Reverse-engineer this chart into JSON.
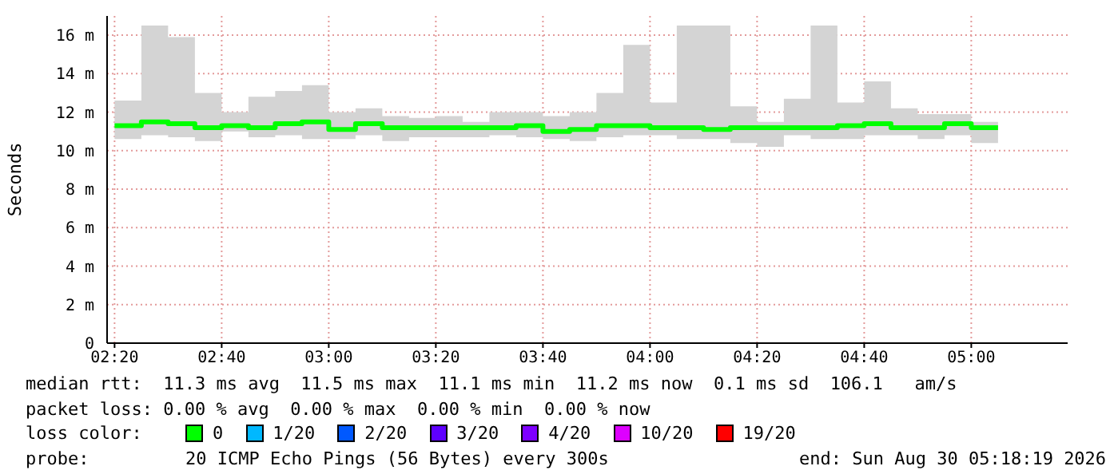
{
  "chart_data": {
    "type": "step",
    "ylabel": "Seconds",
    "x": [
      2.3333,
      2.4167,
      2.5,
      2.5833,
      2.6667,
      2.75,
      2.8333,
      2.9167,
      3.0,
      3.0833,
      3.1667,
      3.25,
      3.3333,
      3.4167,
      3.5,
      3.5833,
      3.6667,
      3.75,
      3.8333,
      3.9167,
      4.0,
      4.0833,
      4.1667,
      4.25,
      4.3333,
      4.4167,
      4.5,
      4.5833,
      4.6667,
      4.75,
      4.8333,
      4.9167,
      5.0,
      5.0833
    ],
    "series": [
      {
        "color": "#00ff00",
        "values": [
          11.3,
          11.5,
          11.4,
          11.2,
          11.3,
          11.2,
          11.4,
          11.5,
          11.1,
          11.4,
          11.2,
          11.2,
          11.2,
          11.2,
          11.2,
          11.3,
          11.0,
          11.1,
          11.3,
          11.3,
          11.2,
          11.2,
          11.1,
          11.2,
          11.2,
          11.2,
          11.2,
          11.3,
          11.4,
          11.2,
          11.2,
          11.4,
          11.2,
          11.2
        ],
        "lower": [
          10.6,
          10.8,
          10.7,
          10.5,
          11.0,
          10.7,
          10.8,
          10.6,
          10.6,
          10.8,
          10.5,
          10.7,
          10.7,
          10.7,
          10.8,
          10.7,
          10.6,
          10.5,
          10.7,
          10.8,
          10.8,
          10.6,
          10.6,
          10.4,
          10.2,
          10.8,
          10.6,
          10.6,
          10.8,
          10.8,
          10.6,
          10.8,
          10.4,
          10.4
        ],
        "upper": [
          12.6,
          16.5,
          15.9,
          13.0,
          12.0,
          12.8,
          13.1,
          13.4,
          12.0,
          12.2,
          11.8,
          11.7,
          11.8,
          11.5,
          12.0,
          12.0,
          11.8,
          12.0,
          13.0,
          15.5,
          12.5,
          16.5,
          16.5,
          12.3,
          11.5,
          12.7,
          16.5,
          12.5,
          13.6,
          12.2,
          11.9,
          11.9,
          11.5,
          11.9
        ]
      }
    ],
    "xlim": [
      2.31,
      5.3
    ],
    "xticks": [
      {
        "value": 2.3333,
        "label": "02:20"
      },
      {
        "value": 2.6667,
        "label": "02:40"
      },
      {
        "value": 3.0,
        "label": "03:00"
      },
      {
        "value": 3.3333,
        "label": "03:20"
      },
      {
        "value": 3.6667,
        "label": "03:40"
      },
      {
        "value": 4.0,
        "label": "04:00"
      },
      {
        "value": 4.3333,
        "label": "04:20"
      },
      {
        "value": 4.6667,
        "label": "04:40"
      },
      {
        "value": 5.0,
        "label": "05:00"
      }
    ],
    "ylim": [
      0,
      17
    ],
    "yticks": [
      0,
      {
        "value": 2,
        "label": "2 m"
      },
      {
        "value": 4,
        "label": "4 m"
      },
      {
        "value": 6,
        "label": "6 m"
      },
      {
        "value": 8,
        "label": "8 m"
      },
      {
        "value": 10,
        "label": "10 m"
      },
      {
        "value": 12,
        "label": "12 m"
      },
      {
        "value": 14,
        "label": "14 m"
      },
      {
        "value": 16,
        "label": "16 m"
      }
    ],
    "grid": true,
    "annotations": [
      "median rtt:  11.3 ms avg  11.5 ms max  11.1 ms min  11.2 ms now  0.1 ms sd  106.1   am/s",
      "packet loss: 0.00 % avg  0.00 % max  0.00 % min  0.00 % now",
      "loss color:",
      "0",
      "1/20",
      "2/20",
      "3/20",
      "4/20",
      "10/20",
      "19/20",
      "probe:",
      "20 ICMP Echo Pings (56 Bytes) every 300s",
      "end: Sun Aug 30 05:18:19 2026"
    ]
  }
}
